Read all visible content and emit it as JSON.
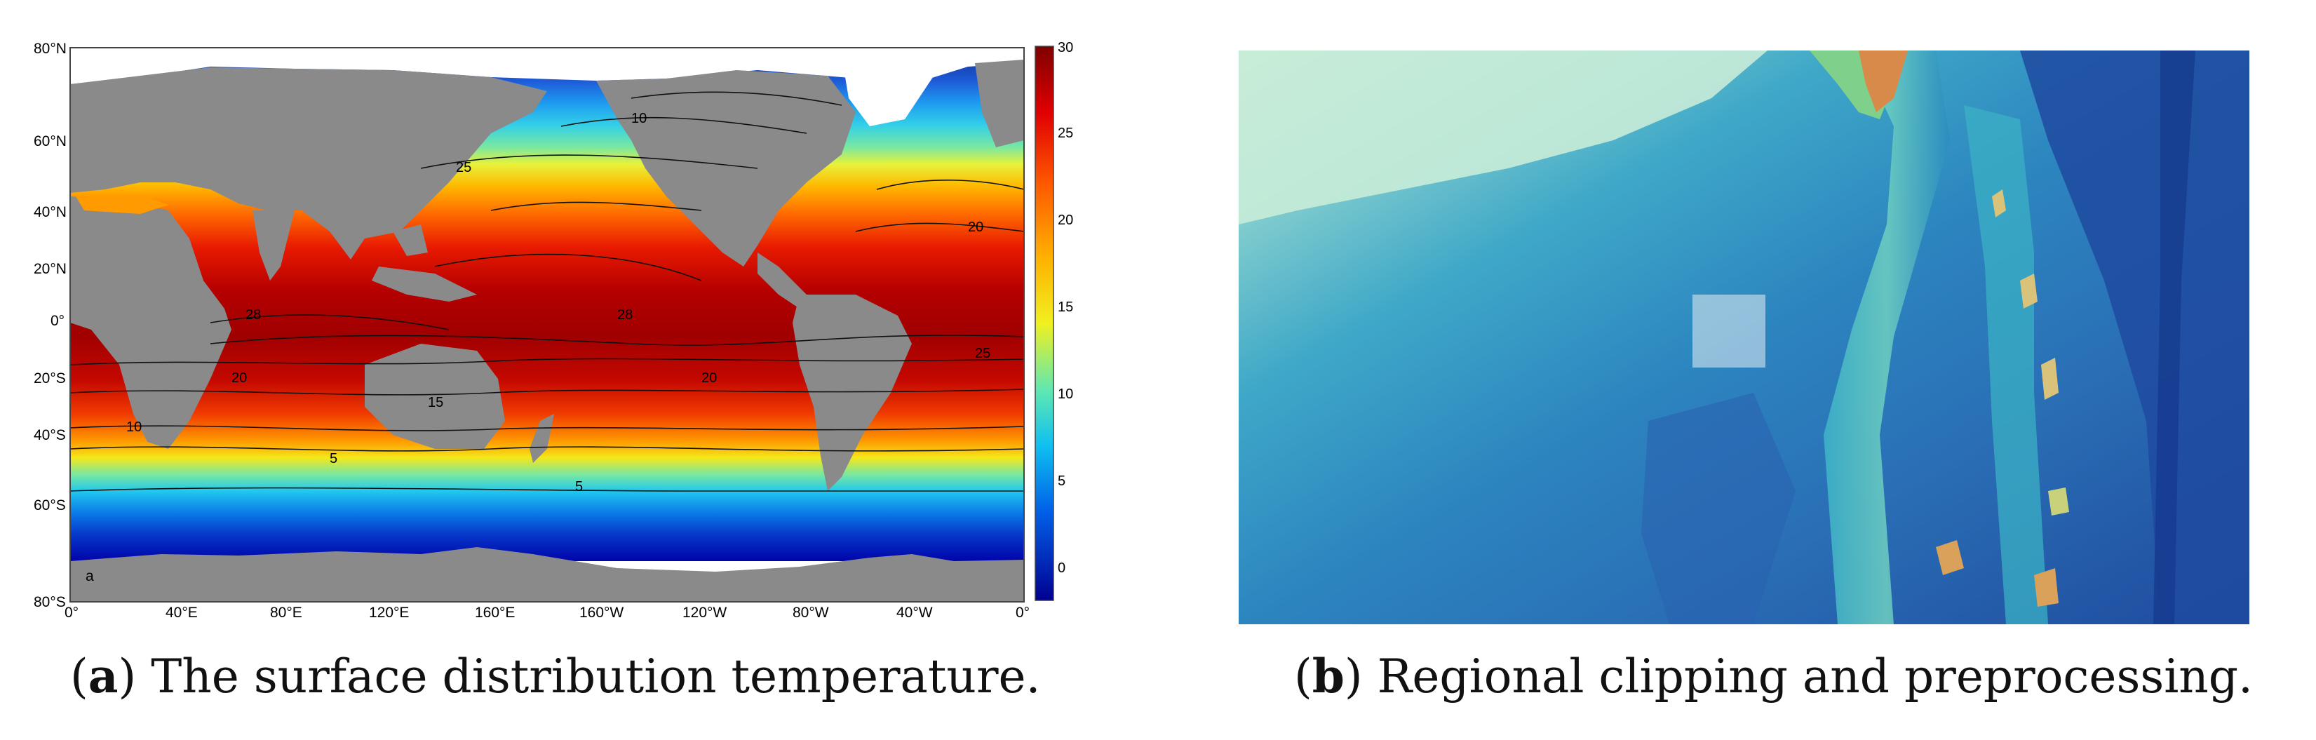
{
  "figure": {
    "panel_a": {
      "caption_letter": "a",
      "caption_text": "The surface distribution temperature.",
      "inset_letter": "a",
      "lat_labels": [
        "80°N",
        "60°N",
        "40°N",
        "20°N",
        "0°",
        "20°S",
        "40°S",
        "60°S",
        "80°S"
      ],
      "lon_labels": [
        "0°",
        "40°E",
        "80°E",
        "120°E",
        "160°E",
        "160°W",
        "120°W",
        "80°W",
        "40°W",
        "0°"
      ],
      "colorbar_ticks": [
        "30",
        "25",
        "20",
        "15",
        "10",
        "5",
        "0"
      ],
      "colorbar_range": [
        -2,
        30
      ],
      "contour_labels": [
        "5",
        "10",
        "15",
        "20",
        "25",
        "28"
      ],
      "colors": {
        "land": "#8a8a8a",
        "ice": "#ffffff",
        "warm": "#a40000",
        "cold": "#0000a8"
      }
    },
    "panel_b": {
      "caption_letter": "b",
      "caption_text": "Regional clipping and preprocessing.",
      "colors": {
        "shallow": "#bfe4d2",
        "mid": "#3aa6c8",
        "deep": "#1d4fa8",
        "land": "#d9a15a",
        "highlight": "#e8eef2"
      }
    }
  }
}
